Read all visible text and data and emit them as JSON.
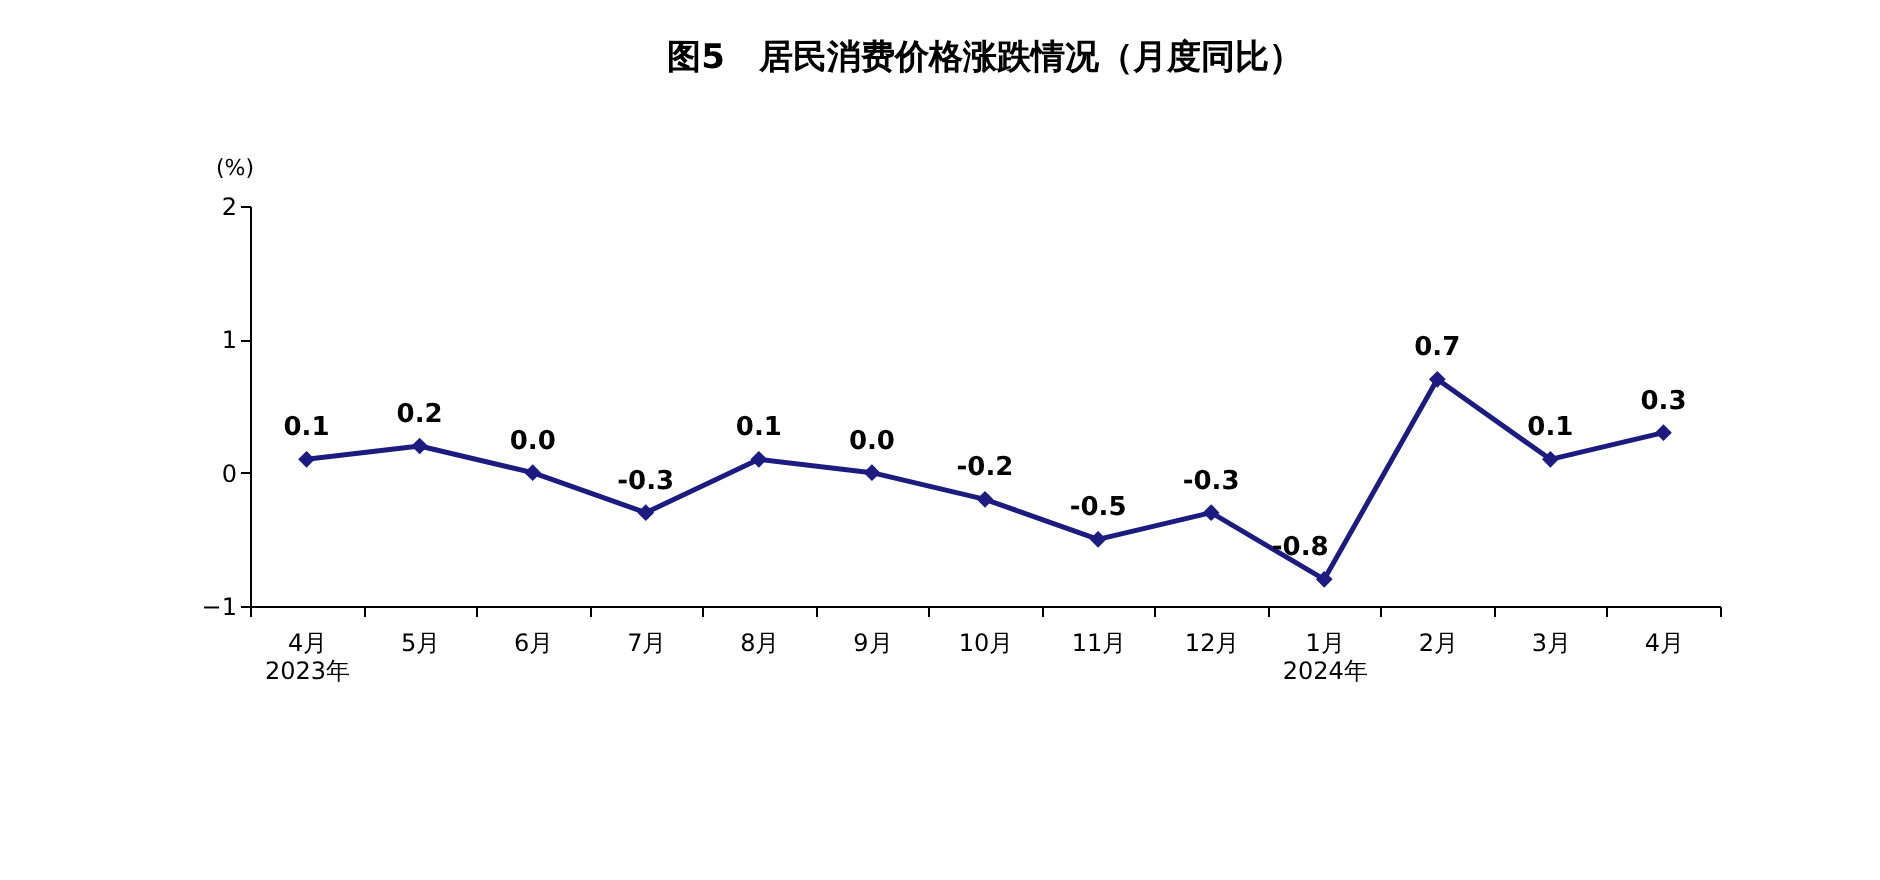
{
  "chart_data": {
    "type": "line",
    "title": "图5　居民消费价格涨跌情况（月度同比）",
    "ylabel": "(%)",
    "categories": [
      "4月\n2023年",
      "5月",
      "6月",
      "7月",
      "8月",
      "9月",
      "10月",
      "11月",
      "12月",
      "1月\n2024年",
      "2月",
      "3月",
      "4月"
    ],
    "series": [
      {
        "color": "#1c1c80",
        "values": [
          0.1,
          0.2,
          0.0,
          -0.3,
          0.1,
          0.0,
          -0.2,
          -0.5,
          -0.3,
          -0.8,
          0.7,
          0.1,
          0.3
        ],
        "value_labels": [
          "0.1",
          "0.2",
          "0.0",
          "-0.3",
          "0.1",
          "0.0",
          "-0.2",
          "-0.5",
          "-0.3",
          "-0.8",
          "0.7",
          "0.1",
          "0.3"
        ]
      }
    ],
    "ylim": [
      -1,
      2
    ],
    "yticks": [
      -1,
      0,
      1,
      2
    ],
    "marker": "diamond",
    "line_style": "solid"
  }
}
